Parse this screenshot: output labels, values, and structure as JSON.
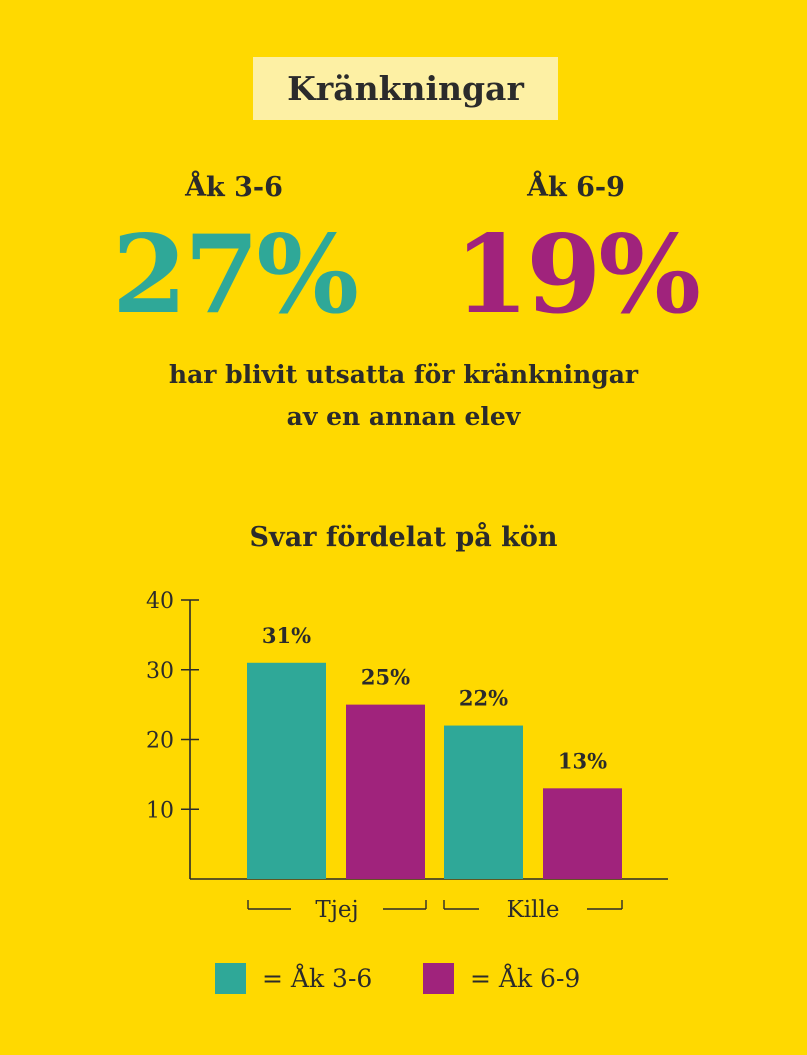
{
  "title": "Kränkningar",
  "stats": [
    {
      "label": "Åk 3-6",
      "value": "27%",
      "color": "#2FA898"
    },
    {
      "label": "Åk 6-9",
      "value": "19%",
      "color": "#A0237C"
    }
  ],
  "description_line1": "har blivit utsatta för kränkningar",
  "description_line2": "av en annan elev",
  "chart_data": {
    "type": "bar",
    "title": "Svar fördelat på kön",
    "categories": [
      "Tjej",
      "Kille"
    ],
    "series": [
      {
        "name": "Åk 3-6",
        "values": [
          31,
          22
        ],
        "labels": [
          "31%",
          "22%"
        ],
        "color": "#2FA898"
      },
      {
        "name": "Åk 6-9",
        "values": [
          25,
          13
        ],
        "labels": [
          "25%",
          "13%"
        ],
        "color": "#A0237C"
      }
    ],
    "ylim": [
      0,
      40
    ],
    "yticks": [
      10,
      20,
      30,
      40
    ],
    "xlabel": "",
    "ylabel": "",
    "grid": false,
    "legend": "bottom"
  },
  "legend": [
    {
      "text": "= Åk 3-6",
      "color": "#2FA898"
    },
    {
      "text": "= Åk 6-9",
      "color": "#A0237C"
    }
  ],
  "colors": {
    "background": "#FFD900",
    "title_box": "#FDF0A4",
    "text": "#2b2b2b"
  }
}
